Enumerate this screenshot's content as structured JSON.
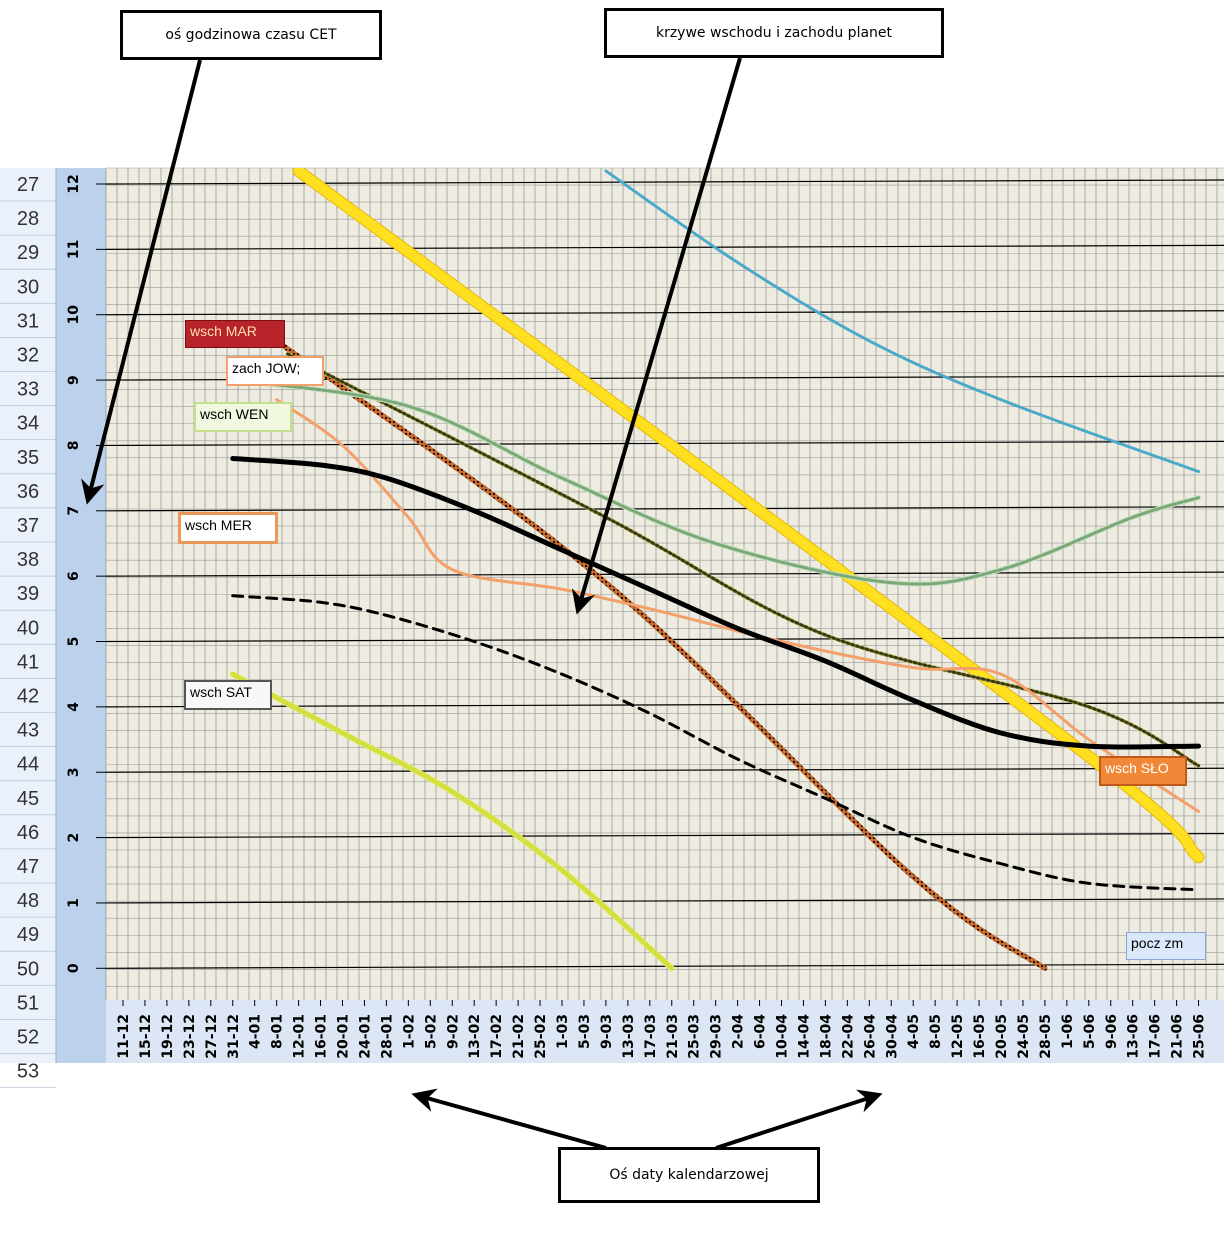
{
  "callouts": {
    "hour_axis": "oś godzinowa czasu CET",
    "curves": "krzywe wschodu i zachodu planet",
    "date_axis": "Oś daty kalendarzowej"
  },
  "colors": {
    "row_header_bg": "#eaf1fa",
    "hour_axis_bg": "#bcd2ec",
    "grid_bg": "#eeece1",
    "sun": "#ffe020",
    "mars": "#7a2a0a",
    "jupiter": "#6b6b1a",
    "venus": "#7aa878",
    "mercury": "#f4a06a",
    "saturn": "#d4e040",
    "dawn": "#000000",
    "twilight": "#000000",
    "cyan": "#4aa8c8"
  },
  "tags": {
    "mars": "wsch MAR",
    "jupiter": "zach JOW;",
    "venus": "wsch WEN",
    "mercury": "wsch MER",
    "saturn": "wsch SAT",
    "sun": "wsch SŁO",
    "twilight": "pocz zm"
  },
  "row_numbers": [
    "27",
    "28",
    "29",
    "30",
    "31",
    "32",
    "33",
    "34",
    "35",
    "36",
    "37",
    "38",
    "39",
    "40",
    "41",
    "42",
    "43",
    "44",
    "45",
    "46",
    "47",
    "48",
    "49",
    "50",
    "51",
    "52",
    "53"
  ],
  "chart_data": {
    "type": "line",
    "y_axis": {
      "ticks": [
        "12",
        "11",
        "10",
        "9",
        "8",
        "7",
        "6",
        "5",
        "4",
        "3",
        "2",
        "1",
        "0"
      ],
      "ylim": [
        0,
        12
      ]
    },
    "x_axis": {
      "ticks": [
        "11-12",
        "15-12",
        "19-12",
        "23-12",
        "27-12",
        "31-12",
        "4-01",
        "8-01",
        "12-01",
        "16-01",
        "20-01",
        "24-01",
        "28-01",
        "1-02",
        "5-02",
        "9-02",
        "13-02",
        "17-02",
        "21-02",
        "25-02",
        "1-03",
        "5-03",
        "9-03",
        "13-03",
        "17-03",
        "21-03",
        "25-03",
        "29-03",
        "2-04",
        "6-04",
        "10-04",
        "14-04",
        "18-04",
        "22-04",
        "26-04",
        "30-04",
        "4-05",
        "8-05",
        "12-05",
        "16-05",
        "20-05",
        "24-05",
        "28-05",
        "1-06",
        "5-06",
        "9-06",
        "13-06",
        "17-06",
        "21-06",
        "25-06"
      ]
    },
    "series": [
      {
        "name": "wsch SŁO",
        "color": "#ffe020",
        "points": [
          [
            8,
            12.2
          ],
          [
            43,
            3.5
          ],
          [
            49,
            1.7
          ]
        ]
      },
      {
        "name": "wsch MAR",
        "points": [
          [
            7,
            9.6
          ],
          [
            22,
            5.9
          ],
          [
            36,
            1.4
          ],
          [
            42,
            0.0
          ]
        ]
      },
      {
        "name": "zach JOW;",
        "points": [
          [
            7.5,
            9.4
          ],
          [
            22,
            6.9
          ],
          [
            32,
            5.1
          ],
          [
            44,
            4.0
          ],
          [
            49,
            3.1
          ]
        ]
      },
      {
        "name": "wsch WEN",
        "points": [
          [
            5,
            9.0
          ],
          [
            13,
            8.6
          ],
          [
            20,
            7.5
          ],
          [
            27,
            6.5
          ],
          [
            35,
            5.9
          ],
          [
            40,
            6.1
          ],
          [
            46,
            6.9
          ],
          [
            49,
            7.2
          ]
        ]
      },
      {
        "name": "wsch MER",
        "points": [
          [
            7,
            8.7
          ],
          [
            10,
            8.0
          ],
          [
            13,
            6.9
          ],
          [
            15,
            6.1
          ],
          [
            20,
            5.8
          ],
          [
            24,
            5.5
          ],
          [
            30,
            5.0
          ],
          [
            36,
            4.6
          ],
          [
            40,
            4.5
          ],
          [
            44,
            3.5
          ],
          [
            49,
            2.4
          ]
        ]
      },
      {
        "name": "wsch SAT",
        "points": [
          [
            5,
            4.5
          ],
          [
            10,
            3.6
          ],
          [
            15,
            2.7
          ],
          [
            20,
            1.5
          ],
          [
            25,
            0.0
          ]
        ]
      },
      {
        "points": [
          [
            5,
            7.8
          ],
          [
            9,
            7.7
          ],
          [
            12,
            7.5
          ],
          [
            16,
            7.0
          ],
          [
            20,
            6.4
          ],
          [
            24,
            5.8
          ],
          [
            28,
            5.2
          ],
          [
            32,
            4.7
          ],
          [
            36,
            4.1
          ],
          [
            40,
            3.6
          ],
          [
            44,
            3.4
          ],
          [
            49,
            3.4
          ]
        ]
      },
      {
        "points": [
          [
            5,
            5.7
          ],
          [
            9,
            5.6
          ],
          [
            12,
            5.4
          ],
          [
            16,
            5.0
          ],
          [
            20,
            4.5
          ],
          [
            24,
            3.9
          ],
          [
            28,
            3.2
          ],
          [
            32,
            2.6
          ],
          [
            36,
            2.0
          ],
          [
            40,
            1.6
          ],
          [
            44,
            1.3
          ],
          [
            49,
            1.2
          ]
        ]
      },
      {
        "points": [
          [
            22,
            12.2
          ],
          [
            28,
            10.8
          ],
          [
            34,
            9.6
          ],
          [
            40,
            8.7
          ],
          [
            49,
            7.6
          ]
        ]
      }
    ]
  }
}
